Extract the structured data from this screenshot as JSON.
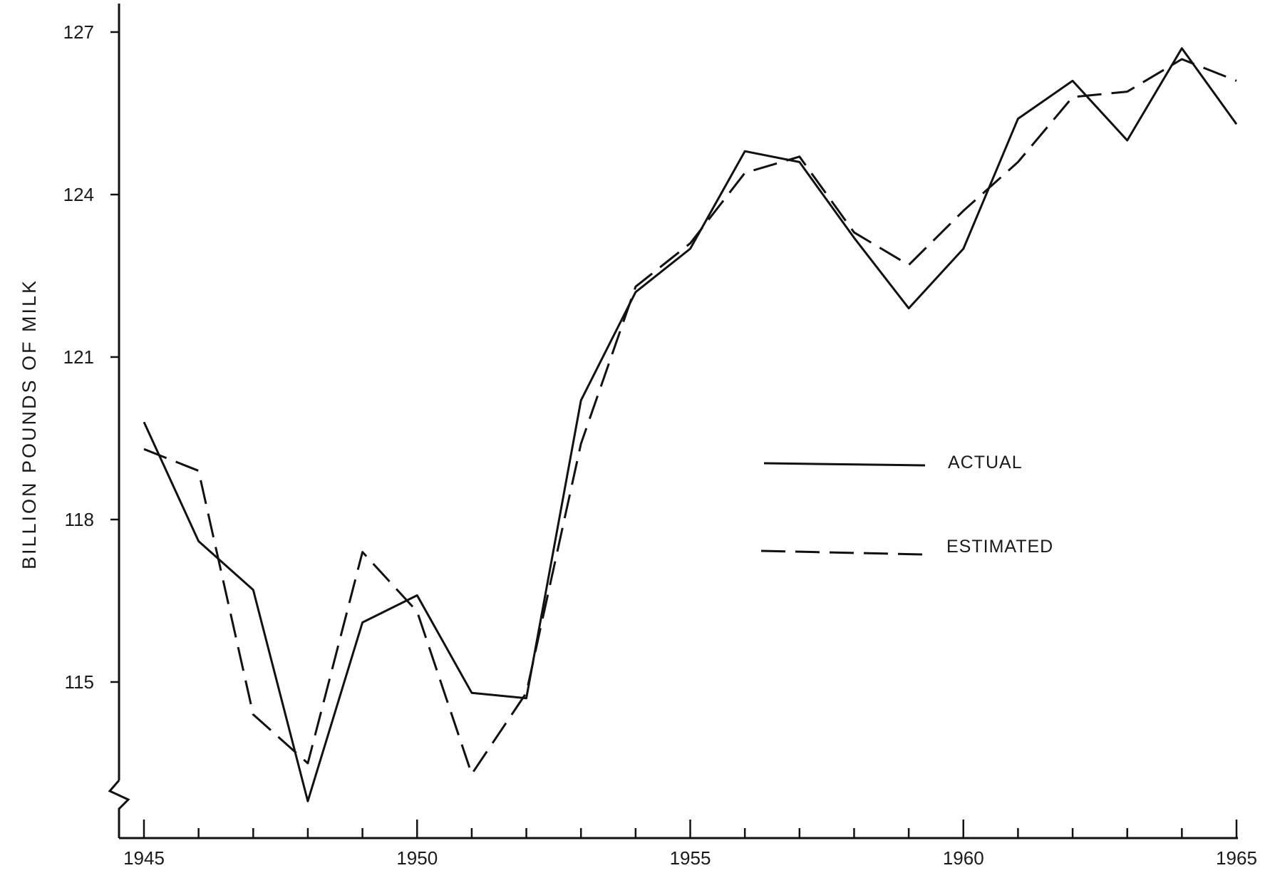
{
  "chart_data": {
    "type": "line",
    "title": "",
    "xlabel": "",
    "ylabel": "BILLION POUNDS OF MILK",
    "x": [
      1945,
      1946,
      1947,
      1948,
      1949,
      1950,
      1951,
      1952,
      1953,
      1954,
      1955,
      1956,
      1957,
      1958,
      1959,
      1960,
      1961,
      1962,
      1963,
      1964,
      1965
    ],
    "xlim": [
      1945,
      1965
    ],
    "ylim": [
      112.5,
      127.5
    ],
    "x_ticks": [
      "1945",
      "1950",
      "1955",
      "1960",
      "1965"
    ],
    "y_ticks": [
      "115",
      "118",
      "121",
      "124",
      "127"
    ],
    "axis_break": true,
    "grid": false,
    "legend_position": "center-right",
    "series": [
      {
        "name": "ACTUAL",
        "style": "solid",
        "values": [
          119.8,
          117.6,
          116.7,
          112.8,
          116.1,
          116.6,
          114.8,
          114.7,
          120.2,
          122.2,
          123.0,
          124.8,
          124.6,
          123.2,
          121.9,
          123.0,
          125.4,
          126.1,
          125.0,
          126.7,
          125.3
        ]
      },
      {
        "name": "ESTIMATED",
        "style": "dashed",
        "values": [
          119.3,
          118.9,
          114.4,
          113.5,
          117.4,
          116.3,
          113.3,
          114.8,
          119.4,
          122.3,
          123.1,
          124.4,
          124.7,
          123.3,
          122.7,
          123.7,
          124.6,
          125.8,
          125.9,
          126.5,
          126.1
        ]
      }
    ]
  }
}
